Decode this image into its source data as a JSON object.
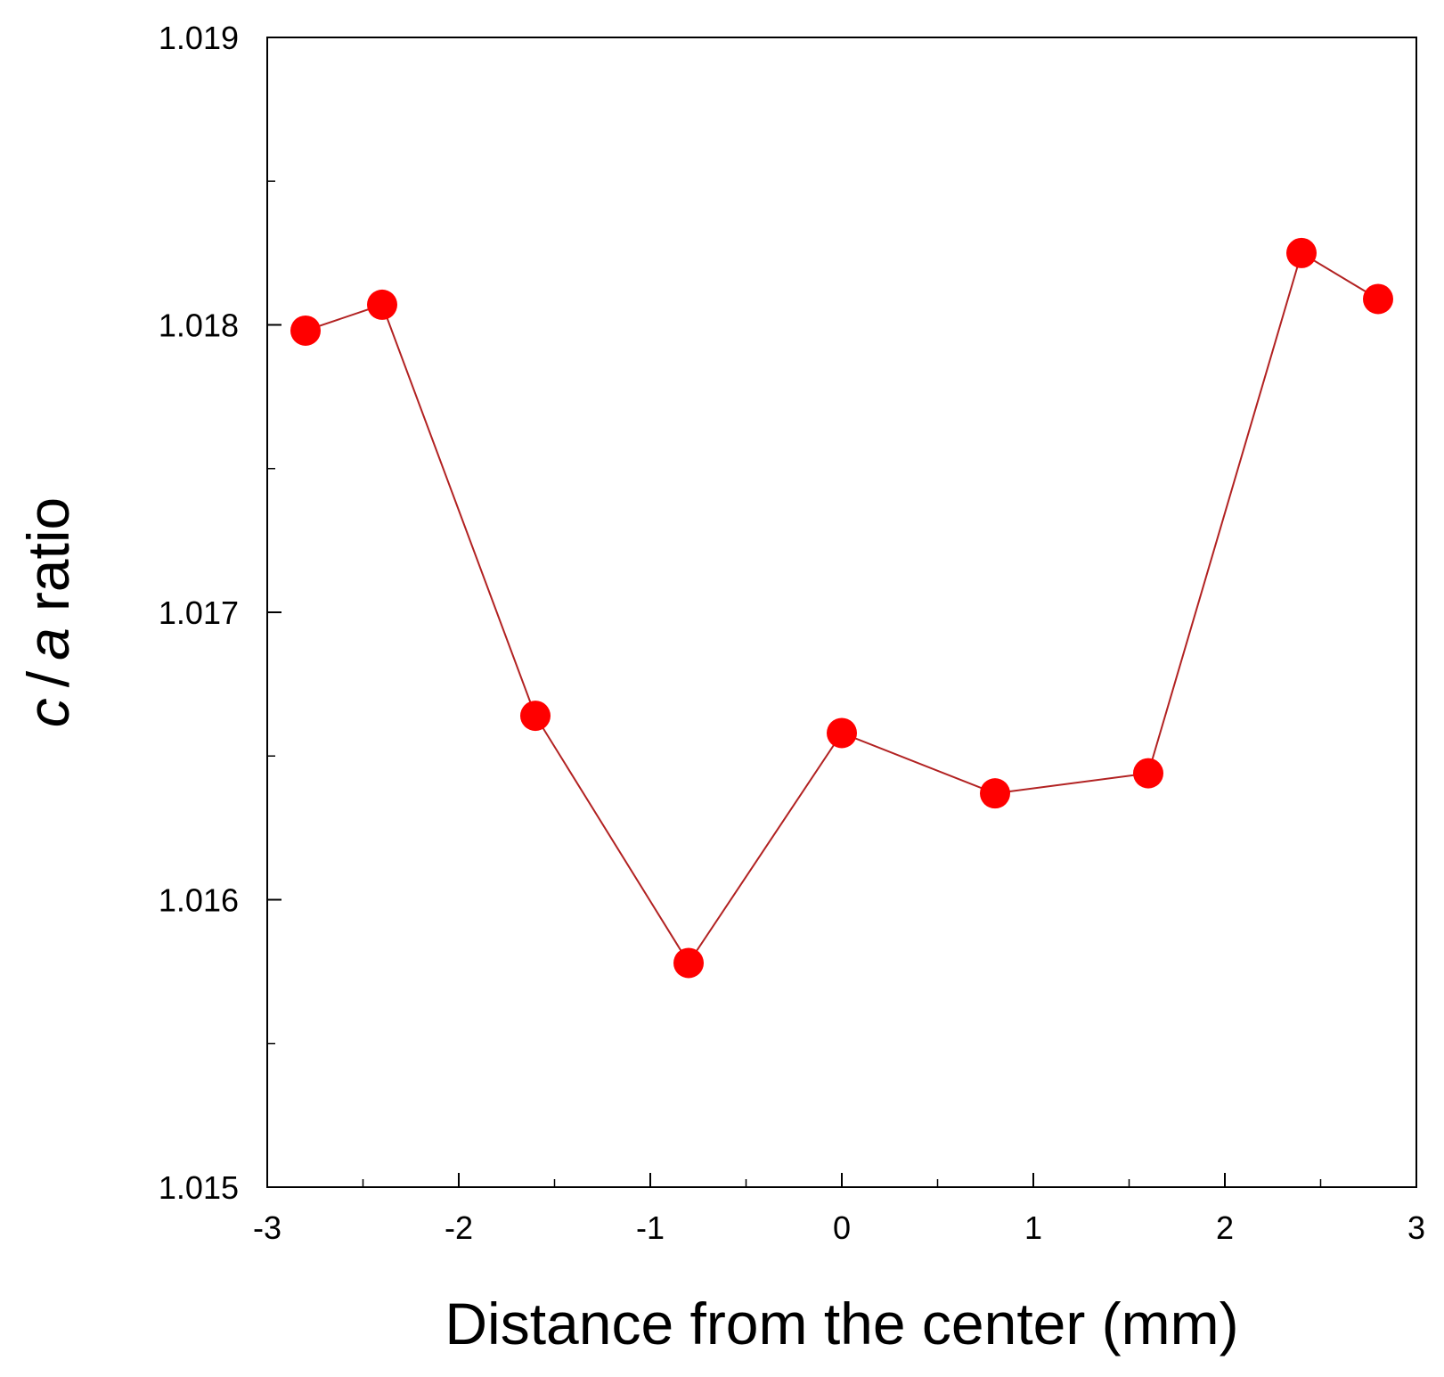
{
  "chart_data": {
    "type": "line",
    "title": "",
    "xlabel": "Distance from the center (mm)",
    "ylabel": {
      "c": "c",
      "slash": "/",
      "a": "a",
      "rest": "ratio"
    },
    "xlim": [
      -3,
      3
    ],
    "ylim": [
      1.015,
      1.019
    ],
    "x_ticks": [
      {
        "value": -3,
        "label": "-3"
      },
      {
        "value": -2,
        "label": "-2"
      },
      {
        "value": -1,
        "label": "-1"
      },
      {
        "value": 0,
        "label": "0"
      },
      {
        "value": 1,
        "label": "1"
      },
      {
        "value": 2,
        "label": "2"
      },
      {
        "value": 3,
        "label": "3"
      }
    ],
    "x_minor_ticks": [
      -2.5,
      -1.5,
      -0.5,
      0.5,
      1.5,
      2.5
    ],
    "y_ticks": [
      {
        "value": 1.015,
        "label": "1.015"
      },
      {
        "value": 1.016,
        "label": "1.016"
      },
      {
        "value": 1.017,
        "label": "1.017"
      },
      {
        "value": 1.018,
        "label": "1.018"
      },
      {
        "value": 1.019,
        "label": "1.019"
      }
    ],
    "y_minor_ticks": [
      1.0155,
      1.0165,
      1.0175,
      1.0185
    ],
    "grid": false,
    "series": [
      {
        "color": "#ff0000",
        "line_color": "#b22222",
        "marker": "circle",
        "x": [
          -2.8,
          -2.4,
          -1.6,
          -0.8,
          0.0,
          0.8,
          1.6,
          2.4,
          2.8
        ],
        "y": [
          1.01798,
          1.01807,
          1.01664,
          1.01578,
          1.01658,
          1.01637,
          1.01644,
          1.01825,
          1.01809
        ]
      }
    ]
  }
}
